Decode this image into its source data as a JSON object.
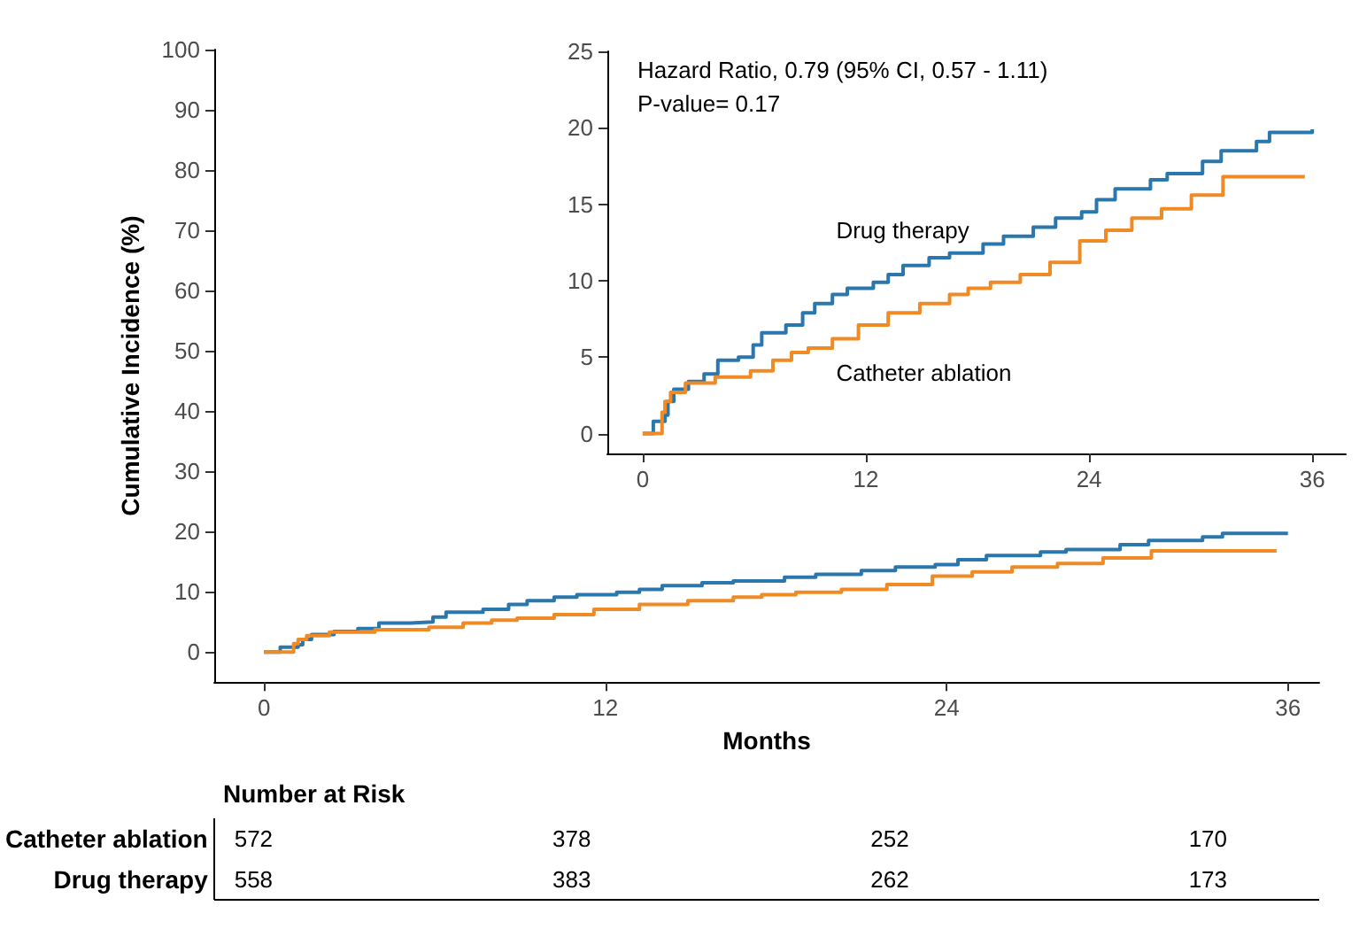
{
  "chart_data": [
    {
      "type": "step",
      "xlabel": "Months",
      "ylabel": "Cumulative Incidence (%)",
      "xlim": [
        -1.75,
        37.1
      ],
      "xticks": [
        0,
        12,
        24,
        36
      ],
      "ylim": [
        -5,
        100
      ],
      "yticks": [
        0,
        10,
        20,
        30,
        40,
        50,
        60,
        70,
        80,
        90,
        100
      ],
      "series": [
        {
          "color": "#2a77ad",
          "x": [
            0,
            0.57,
            1.2,
            1.36,
            1.67,
            2.46,
            3.3,
            4.04,
            5.15,
            5.94,
            6.4,
            7.7,
            8.6,
            9.25,
            10.2,
            11.0,
            12.4,
            13.2,
            14.0,
            15.4,
            16.5,
            18.3,
            19.4,
            21.0,
            22.2,
            23.6,
            24.4,
            25.4,
            27.3,
            28.2,
            30.1,
            31.1,
            33.0,
            33.7,
            36
          ],
          "values": [
            0,
            0.8,
            1.2,
            2.1,
            2.9,
            3.4,
            3.9,
            4.8,
            5.0,
            5.8,
            6.6,
            7.1,
            7.9,
            8.5,
            9.1,
            9.5,
            9.9,
            10.4,
            11.0,
            11.5,
            11.8,
            12.4,
            12.9,
            13.5,
            14.1,
            14.5,
            15.3,
            16.0,
            16.6,
            17.0,
            17.8,
            18.5,
            19.1,
            19.7,
            19.9
          ]
        },
        {
          "color": "#f08a24",
          "x": [
            0,
            1.04,
            1.2,
            1.5,
            2.3,
            3.9,
            5.8,
            7.0,
            8.0,
            8.9,
            10.2,
            11.6,
            13.2,
            14.9,
            16.5,
            17.5,
            18.7,
            20.3,
            21.9,
            23.5,
            24.9,
            26.3,
            27.9,
            29.5,
            31.2,
            35.6
          ],
          "values": [
            0,
            1.4,
            2.1,
            2.7,
            3.3,
            3.7,
            4.1,
            4.8,
            5.3,
            5.6,
            6.2,
            7.1,
            7.9,
            8.5,
            9.1,
            9.5,
            9.9,
            10.4,
            11.2,
            12.6,
            13.3,
            14.1,
            14.7,
            15.6,
            16.8,
            16.8
          ]
        }
      ]
    },
    {
      "type": "step",
      "annotations": [
        "Hazard Ratio, 0.79 (95% CI, 0.57 - 1.11)",
        "P-value= 0.17"
      ],
      "xlim": [
        -1.9,
        37.8
      ],
      "xticks": [
        0,
        12,
        24,
        36
      ],
      "ylim": [
        -1.3,
        25
      ],
      "yticks": [
        0,
        5,
        10,
        15,
        20,
        25
      ],
      "series": [
        {
          "name": "Drug therapy",
          "color": "#2a77ad",
          "x": [
            0,
            0.57,
            1.2,
            1.36,
            1.67,
            2.46,
            3.3,
            4.04,
            5.15,
            5.94,
            6.4,
            7.7,
            8.6,
            9.25,
            10.2,
            11.0,
            12.4,
            13.2,
            14.0,
            15.4,
            16.5,
            18.3,
            19.4,
            21.0,
            22.2,
            23.6,
            24.4,
            25.4,
            27.3,
            28.2,
            30.1,
            31.1,
            33.0,
            33.7,
            36
          ],
          "values": [
            0,
            0.8,
            1.2,
            2.1,
            2.9,
            3.4,
            3.9,
            4.8,
            5.0,
            5.8,
            6.6,
            7.1,
            7.9,
            8.5,
            9.1,
            9.5,
            9.9,
            10.4,
            11.0,
            11.5,
            11.8,
            12.4,
            12.9,
            13.5,
            14.1,
            14.5,
            15.3,
            16.0,
            16.6,
            17.0,
            17.8,
            18.5,
            19.1,
            19.7,
            19.9
          ]
        },
        {
          "name": "Catheter ablation",
          "color": "#f08a24",
          "x": [
            0,
            1.04,
            1.2,
            1.5,
            2.3,
            3.9,
            5.8,
            7.0,
            8.0,
            8.9,
            10.2,
            11.6,
            13.2,
            14.9,
            16.5,
            17.5,
            18.7,
            20.3,
            21.9,
            23.5,
            24.9,
            26.3,
            27.9,
            29.5,
            31.2,
            35.6
          ],
          "values": [
            0,
            1.4,
            2.1,
            2.7,
            3.3,
            3.7,
            4.1,
            4.8,
            5.3,
            5.6,
            6.2,
            7.1,
            7.9,
            8.5,
            9.1,
            9.5,
            9.9,
            10.4,
            11.2,
            12.6,
            13.3,
            14.1,
            14.7,
            15.6,
            16.8,
            16.8
          ]
        }
      ]
    },
    {
      "type": "heatmap",
      "title": "Number at Risk",
      "categories": [
        null,
        null,
        null,
        null
      ],
      "y_categories": [
        "Catheter ablation",
        "Drug therapy"
      ],
      "data_labels": true,
      "cells": [
        [
          572,
          378,
          252,
          170
        ],
        [
          558,
          383,
          262,
          173
        ]
      ]
    }
  ]
}
